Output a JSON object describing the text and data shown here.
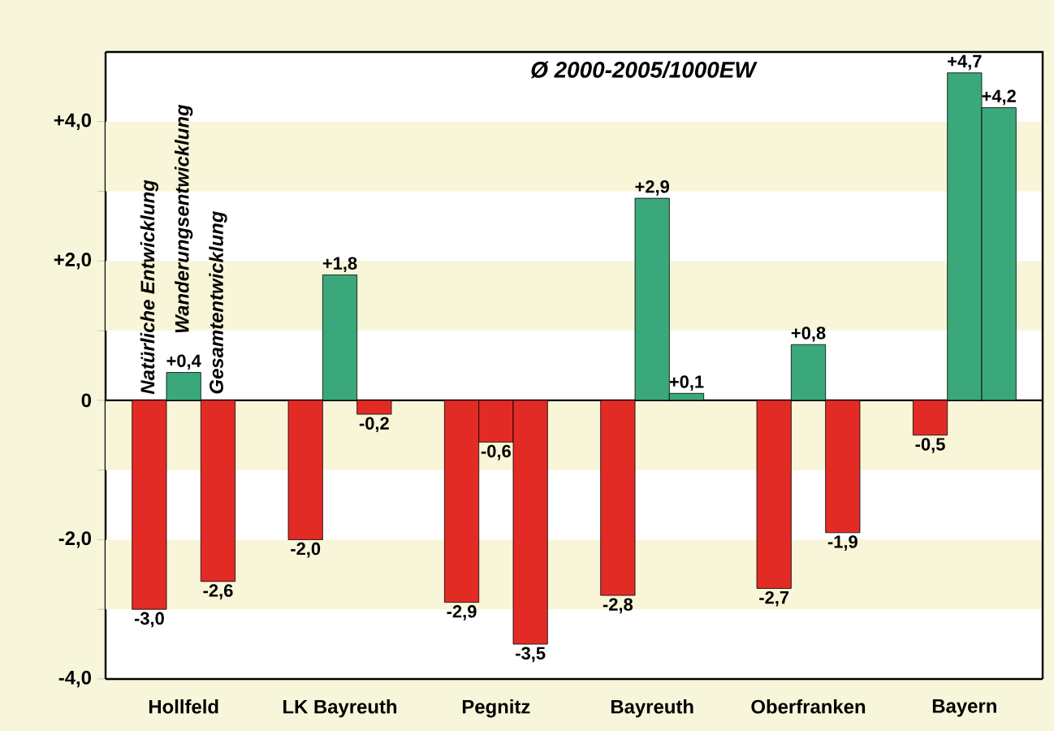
{
  "chart_data": {
    "type": "bar",
    "categories": [
      "Hollfeld",
      "LK Bayreuth",
      "Pegnitz",
      "Bayreuth",
      "Oberfranken",
      "Bayern"
    ],
    "series": [
      {
        "name": "Natürliche Entwicklung",
        "values": [
          -3.0,
          -2.0,
          -2.9,
          -2.8,
          -2.7,
          -0.5
        ],
        "colors": [
          "#e32b26",
          "#e32b26",
          "#e32b26",
          "#e32b26",
          "#e32b26",
          "#e32b26"
        ],
        "value_labels": [
          "-3,0",
          "-2,0",
          "-2,9",
          "-2,8",
          "-2,7",
          "-0,5"
        ]
      },
      {
        "name": "Wanderungsentwicklung",
        "values": [
          0.4,
          1.8,
          -0.6,
          2.9,
          0.8,
          4.7
        ],
        "colors": [
          "#3aa87a",
          "#3aa87a",
          "#e32b26",
          "#3aa87a",
          "#3aa87a",
          "#3aa87a"
        ],
        "value_labels": [
          "+0,4",
          "+1,8",
          "-0,6",
          "+2,9",
          "+0,8",
          "+4,7"
        ]
      },
      {
        "name": "Gesamtentwicklung",
        "values": [
          -2.6,
          -0.2,
          -3.5,
          0.1,
          -1.9,
          4.2
        ],
        "colors": [
          "#e32b26",
          "#e32b26",
          "#e32b26",
          "#3aa87a",
          "#e32b26",
          "#3aa87a"
        ],
        "value_labels": [
          "-2,6",
          "-0,2",
          "-3,5",
          "+0,1",
          "-1,9",
          "+4,2"
        ]
      }
    ],
    "ylim": [
      -4,
      5
    ],
    "yticks": [
      {
        "value": -4,
        "label": "-4,0"
      },
      {
        "value": -3,
        "label": null
      },
      {
        "value": -2,
        "label": "-2,0"
      },
      {
        "value": -1,
        "label": null
      },
      {
        "value": 0,
        "label": "0"
      },
      {
        "value": 1,
        "label": null
      },
      {
        "value": 2,
        "label": "+2,0"
      },
      {
        "value": 3,
        "label": null
      },
      {
        "value": 4,
        "label": "+4,0"
      }
    ],
    "bands": [
      {
        "axis": "y",
        "from": 3,
        "to": 4,
        "color": "#f8f5d8"
      },
      {
        "axis": "y",
        "from": 1,
        "to": 2,
        "color": "#f8f5d8"
      },
      {
        "axis": "y",
        "from": -1,
        "to": 0,
        "color": "#f8f5d8"
      },
      {
        "axis": "y",
        "from": -3,
        "to": -2,
        "color": "#f8f5d8"
      }
    ],
    "annotations": [
      "Ø 2000-2005/1000EW"
    ]
  }
}
